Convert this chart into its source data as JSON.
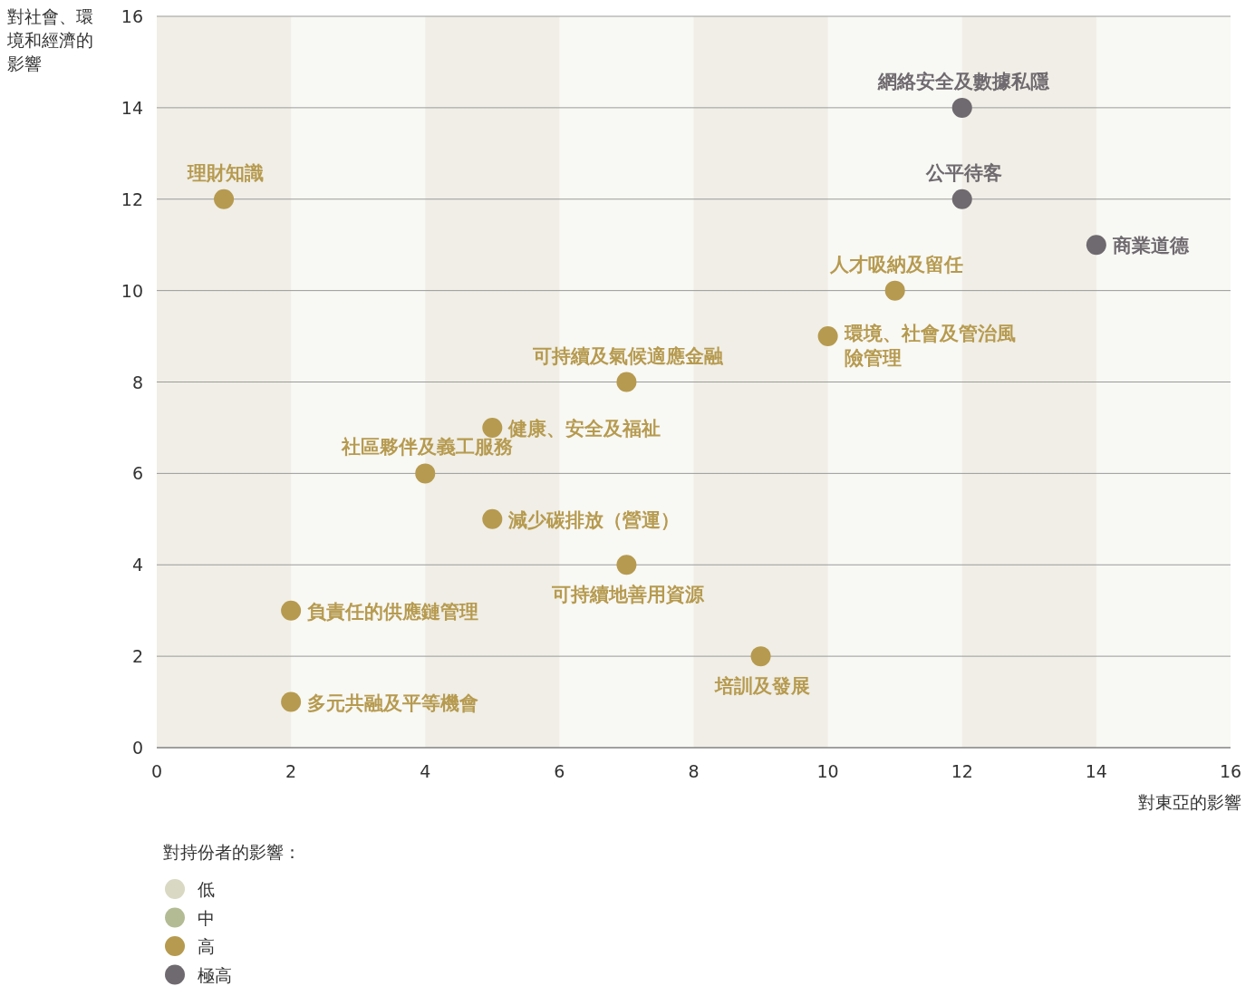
{
  "chart_data": {
    "type": "scatter",
    "xlabel": "對東亞的影響",
    "ylabel": "對社會、環境和經濟的影響",
    "legend_title": "對持份者的影響：",
    "xlim": [
      0,
      16
    ],
    "ylim": [
      0,
      16
    ],
    "xticks": [
      0,
      2,
      4,
      6,
      8,
      10,
      12,
      14,
      16
    ],
    "yticks": [
      0,
      2,
      4,
      6,
      8,
      10,
      12,
      14,
      16
    ],
    "grid": "y",
    "legend": "bottom left",
    "marker": "circle",
    "bands": [
      {
        "axis": "x",
        "from": 0,
        "to": 2,
        "color": "#f0eee6"
      },
      {
        "axis": "x",
        "from": 4,
        "to": 6,
        "color": "#f0eee6"
      },
      {
        "axis": "x",
        "from": 8,
        "to": 10,
        "color": "#f0eee6"
      },
      {
        "axis": "x",
        "from": 12,
        "to": 14,
        "color": "#f0eee6"
      }
    ],
    "series": [
      {
        "name": "低",
        "color": "#d9d8c3"
      },
      {
        "name": "中",
        "color": "#b3bb94"
      },
      {
        "name": "高",
        "color": "#b69a4f",
        "x": [
          1,
          11,
          10,
          7,
          5,
          4,
          5,
          7,
          2,
          9,
          2
        ],
        "values": [
          12,
          10,
          9,
          8,
          7,
          6,
          5,
          4,
          3,
          2,
          1
        ]
      },
      {
        "name": "極高",
        "color": "#6f6a6f",
        "x": [
          12,
          12,
          14
        ],
        "values": [
          14,
          12,
          11
        ]
      }
    ],
    "annotations": [
      {
        "text": "網絡安全及數據私隱",
        "x": 12,
        "y": 14
      },
      {
        "text": "理財知識",
        "x": 1,
        "y": 12
      },
      {
        "text": "公平待客",
        "x": 12,
        "y": 12
      },
      {
        "text": "商業道德",
        "x": 14,
        "y": 11
      },
      {
        "text": "人才吸納及留任",
        "x": 11,
        "y": 10
      },
      {
        "text": "環境、社會及管治風險管理",
        "x": 10,
        "y": 9
      },
      {
        "text": "可持續及氣候適應金融",
        "x": 7,
        "y": 8
      },
      {
        "text": "健康、安全及福祉",
        "x": 5,
        "y": 7
      },
      {
        "text": "社區夥伴及義工服務",
        "x": 4,
        "y": 6
      },
      {
        "text": "減少碳排放（營運）",
        "x": 5,
        "y": 5
      },
      {
        "text": "可持續地善用資源",
        "x": 7,
        "y": 4
      },
      {
        "text": "負責任的供應鏈管理",
        "x": 2,
        "y": 3
      },
      {
        "text": "培訓及發展",
        "x": 9,
        "y": 2
      },
      {
        "text": "多元共融及平等機會",
        "x": 2,
        "y": 1
      }
    ]
  }
}
